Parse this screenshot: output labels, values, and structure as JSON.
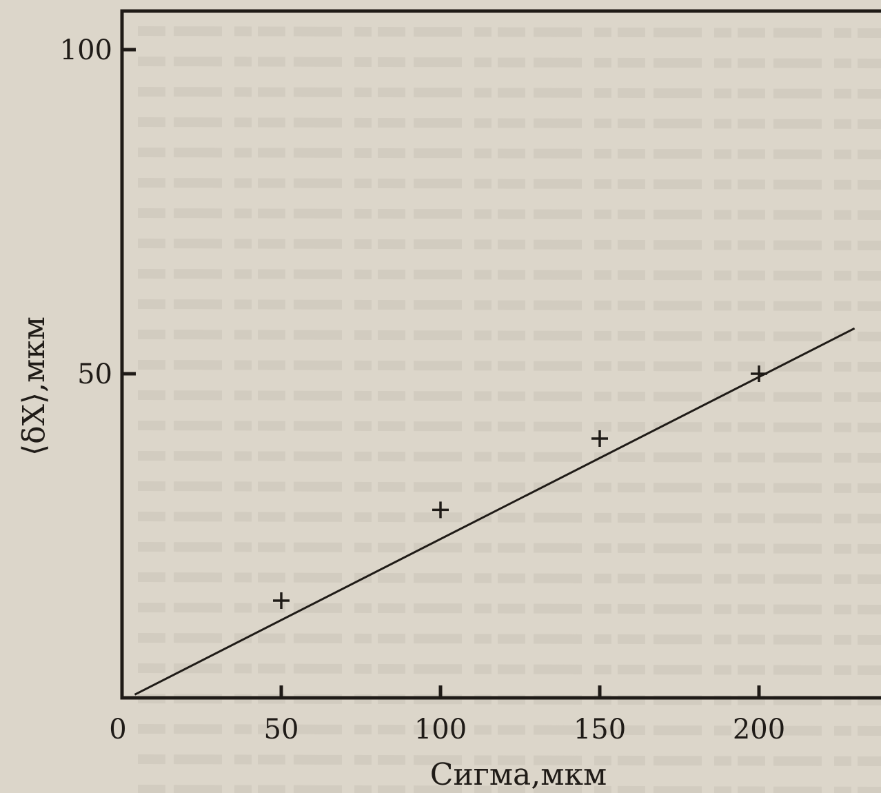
{
  "chart_data": {
    "type": "scatter",
    "title": "",
    "xlabel": "Сигма,мкм",
    "ylabel": "⟨δX⟩,мкм",
    "xlim": [
      0,
      235
    ],
    "ylim": [
      0,
      107
    ],
    "x_ticks": [
      "0",
      "50",
      "100",
      "150",
      "200"
    ],
    "x_tick_values": [
      0,
      50,
      100,
      150,
      200
    ],
    "y_ticks": [
      "100",
      "50"
    ],
    "y_tick_values": [
      100,
      50
    ],
    "grid": false,
    "legend": "none",
    "series": [
      {
        "marker": "plus",
        "x": [
          50,
          100,
          150,
          200
        ],
        "y": [
          15,
          29,
          40,
          50
        ]
      }
    ],
    "fit_line": {
      "x": [
        4,
        230
      ],
      "y": [
        0.5,
        57
      ]
    },
    "colors": {
      "ink": "#1f1b17",
      "paper": "#dcd6ca"
    }
  }
}
